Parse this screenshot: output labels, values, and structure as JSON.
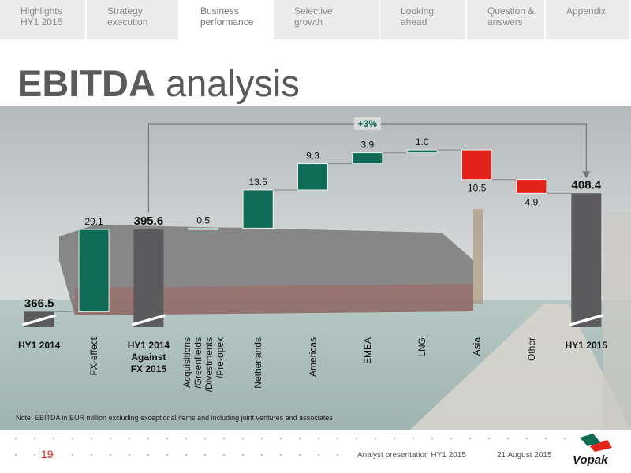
{
  "nav": {
    "tabs": [
      "Highlights\nHY1 2015",
      "Strategy\nexecution",
      "Business\nperformance",
      "Selective\ngrowth",
      "Looking\nahead",
      "Question &\nanswers",
      "Appendix"
    ],
    "active": 2
  },
  "header": {
    "title_strong": "EBITDA",
    "title_rest": "analysis"
  },
  "chart_data": {
    "type": "waterfall",
    "categories": [
      "HY1 2014",
      "FX-effect",
      "HY1 2014\nAgainst\nFX 2015",
      "Acquisitions\n/Greenfields\n/Divestments\n/Pre-opex",
      "Netherlands",
      "Americas",
      "EMEA",
      "LNG",
      "Asia",
      "Other",
      "HY1 2015"
    ],
    "measure": [
      "total",
      "relative",
      "total",
      "relative",
      "relative",
      "relative",
      "relative",
      "relative",
      "relative",
      "relative",
      "total"
    ],
    "values": [
      366.5,
      29.1,
      395.6,
      0.5,
      13.5,
      9.3,
      3.9,
      1.0,
      -10.5,
      -4.9,
      408.4
    ],
    "value_labels": [
      "366.5",
      "29.1",
      "395.6",
      "0.5",
      "13.5",
      "9.3",
      "3.9",
      "1.0",
      "10.5",
      "4.9",
      "408.4"
    ],
    "colors": {
      "increase": "#0f6b56",
      "decrease": "#e2231a",
      "total": "#5b5b5d"
    },
    "ylim": [
      361,
      435
    ],
    "annotation": "+3%"
  },
  "note": "Note: EBITDA in EUR million excluding exceptional items and including joint ventures and associates",
  "footer": {
    "page": "19",
    "presentation": "Analyst presentation HY1 2015",
    "date": "21 August 2015",
    "logo": "Vopak"
  }
}
